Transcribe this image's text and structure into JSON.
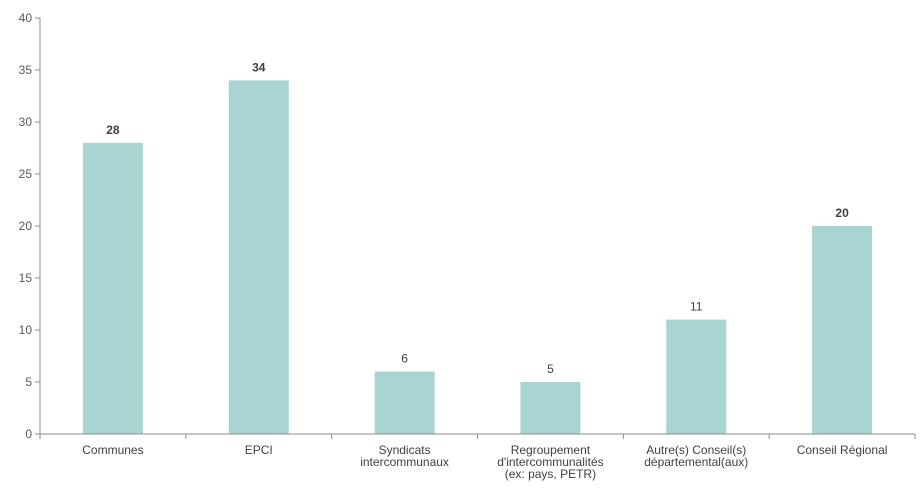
{
  "chart_data": {
    "type": "bar",
    "title": "",
    "xlabel": "",
    "ylabel": "",
    "ylim": [
      0,
      40
    ],
    "yticks": [
      0,
      5,
      10,
      15,
      20,
      25,
      30,
      35,
      40
    ],
    "grid": false,
    "bar_color": "#a8d5d1",
    "categories": [
      [
        "Communes"
      ],
      [
        "EPCI"
      ],
      [
        "Syndicats",
        "intercommunaux"
      ],
      [
        "Regroupement",
        "d'intercommunalités",
        "(ex: pays, PETR)"
      ],
      [
        "Autre(s) Conseil(s)",
        "départemental(aux)"
      ],
      [
        "Conseil Régional"
      ]
    ],
    "values": [
      28,
      34,
      6,
      5,
      11,
      20
    ],
    "value_labels": [
      "28",
      "34",
      "6",
      "5",
      "11",
      "20"
    ],
    "value_label_bold": [
      true,
      true,
      false,
      false,
      false,
      true
    ]
  }
}
